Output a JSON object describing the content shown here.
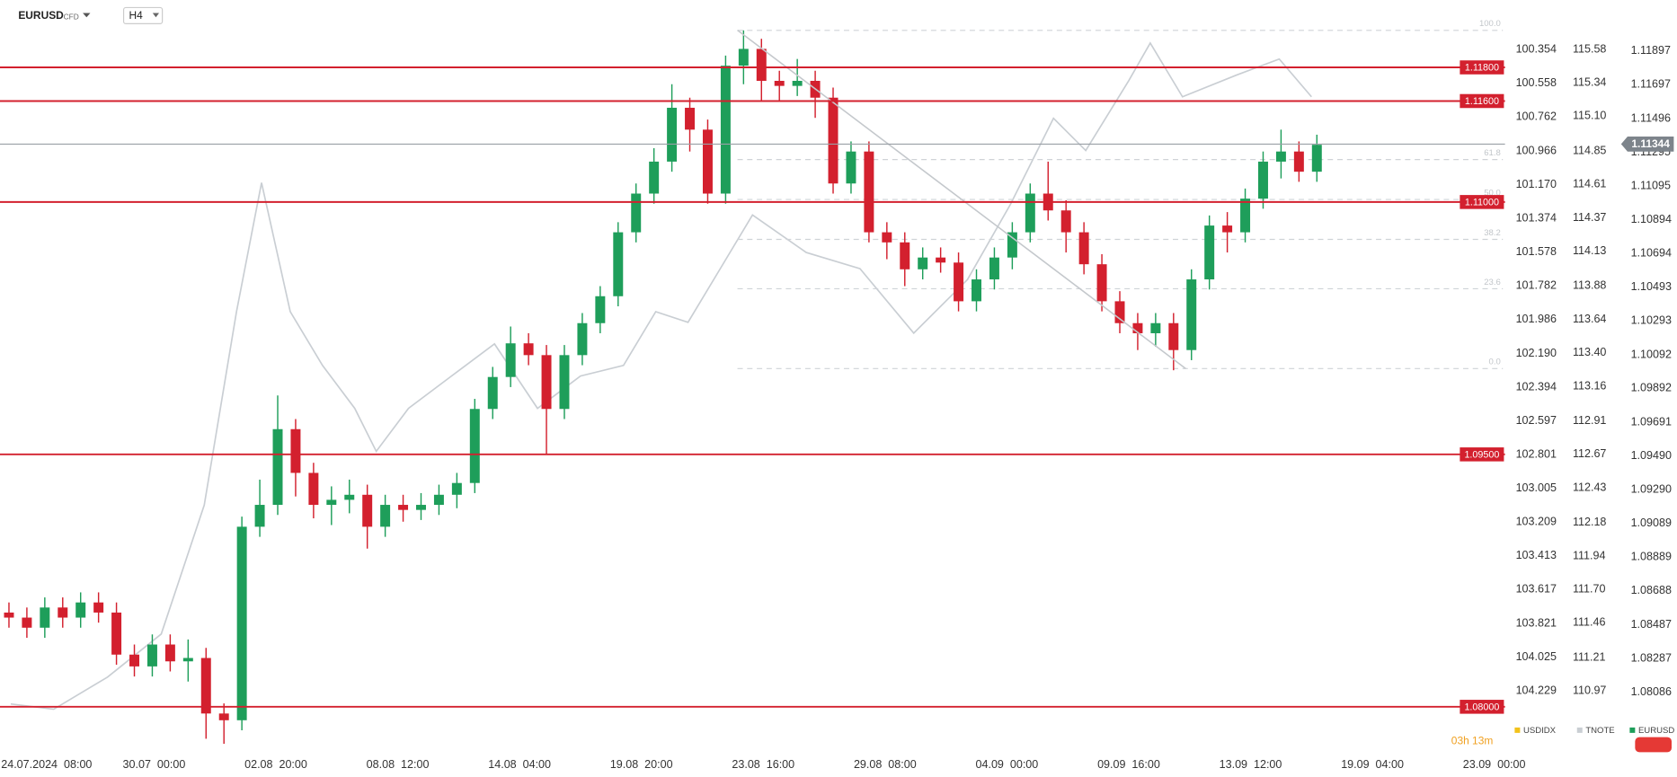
{
  "toolbar": {
    "symbol": "EURUSD",
    "instrument_type": "CFD",
    "timeframe": "H4",
    "countdown": "03h 13m"
  },
  "chart_data": {
    "type": "candlestick",
    "xlim": [
      0,
      420
    ],
    "xticks": [
      {
        "value": 13,
        "label": "24.07.2024  08:00"
      },
      {
        "value": 43,
        "label": "30.07  00:00"
      },
      {
        "value": 77,
        "label": "02.08  20:00"
      },
      {
        "value": 111,
        "label": "08.08  12:00"
      },
      {
        "value": 145,
        "label": "14.08  04:00"
      },
      {
        "value": 179,
        "label": "19.08  20:00"
      },
      {
        "value": 213,
        "label": "23.08  16:00"
      },
      {
        "value": 247,
        "label": "29.08  08:00"
      },
      {
        "value": 281,
        "label": "04.09  00:00"
      },
      {
        "value": 315,
        "label": "09.09  16:00"
      },
      {
        "value": 349,
        "label": "13.09  12:00"
      },
      {
        "value": 383,
        "label": "19.09  04:00"
      },
      {
        "value": 417,
        "label": "23.09  00:00"
      }
    ],
    "series": [
      {
        "name": "USDIDX",
        "color": "#f2c21b",
        "ylim": [
          104.599,
          100.055
        ],
        "yticks": [
          100.354,
          100.558,
          100.762,
          100.966,
          {
            "value": 101.17,
            "label": "101.170"
          },
          101.374,
          101.578,
          101.782,
          101.986,
          {
            "value": 102.19,
            "label": "102.190"
          },
          102.394,
          102.597,
          102.801,
          103.005,
          103.209,
          103.413,
          103.617,
          103.821,
          104.025,
          104.229
        ]
      },
      {
        "name": "TNOTE",
        "color": "#c9ced3",
        "ylim": [
          110.53,
          115.935
        ],
        "yticks": [
          115.58,
          115.34,
          {
            "value": 115.1,
            "label": "115.10"
          },
          114.85,
          114.61,
          114.37,
          114.13,
          113.88,
          113.64,
          {
            "value": 113.4,
            "label": "113.40"
          },
          113.16,
          112.91,
          112.67,
          112.43,
          112.18,
          111.94,
          {
            "value": 111.7,
            "label": "111.70"
          },
          111.46,
          111.21,
          110.97
        ],
        "x": [
          3,
          15,
          30,
          45,
          57,
          66,
          73,
          81,
          90,
          99,
          105,
          114,
          126,
          138,
          150,
          162,
          174,
          183,
          192,
          201,
          210,
          225,
          240,
          255,
          270,
          282,
          294,
          303,
          315,
          321,
          330,
          345,
          357,
          366
        ],
        "values": [
          110.877,
          110.839,
          111.07,
          111.379,
          112.306,
          113.696,
          114.622,
          113.696,
          113.31,
          113.001,
          112.692,
          113.001,
          113.233,
          113.464,
          113.001,
          113.233,
          113.31,
          113.696,
          113.619,
          114.005,
          114.391,
          114.121,
          114.005,
          113.541,
          113.927,
          114.468,
          115.086,
          114.854,
          115.356,
          115.626,
          115.24,
          115.395,
          115.511,
          115.24
        ]
      },
      {
        "name": "EURUSD",
        "color": "#1e9e5a",
        "down_color": "#d3202e",
        "ylim": [
          1.0773,
          1.122
        ],
        "yticks": [
          1.11897,
          1.11697,
          1.11496,
          1.11295,
          1.11095,
          1.10894,
          1.10694,
          1.10493,
          1.10293,
          1.10092,
          1.09892,
          1.09691,
          {
            "value": 1.0949,
            "label": "1.09490"
          },
          {
            "value": 1.0929,
            "label": "1.09290"
          },
          1.09089,
          1.08889,
          1.08688,
          1.08487,
          1.08287,
          1.08086
        ],
        "last_price": 1.11344,
        "x": [
          2.5,
          7.5,
          12.5,
          17.5,
          22.5,
          27.5,
          32.5,
          37.5,
          42.5,
          47.5,
          52.5,
          57.5,
          62.5,
          67.5,
          72.5,
          77.5,
          82.5,
          87.5,
          92.5,
          97.5,
          102.5,
          107.5,
          112.5,
          117.5,
          122.5,
          127.5,
          132.5,
          137.5,
          142.5,
          147.5,
          152.5,
          157.5,
          162.5,
          167.5,
          172.5,
          177.5,
          182.5,
          187.5,
          192.5,
          197.5,
          202.5,
          207.5,
          212.5,
          217.5,
          222.5,
          227.5,
          232.5,
          237.5,
          242.5,
          247.5,
          252.5,
          257.5,
          262.5,
          267.5,
          272.5,
          277.5,
          282.5,
          287.5,
          292.5,
          297.5,
          302.5,
          307.5,
          312.5,
          317.5,
          322.5,
          327.5,
          332.5,
          337.5,
          342.5,
          347.5,
          352.5,
          357.5,
          362.5,
          367.5
        ],
        "open": [
          1.0856,
          1.0853,
          1.0847,
          1.0859,
          1.0853,
          1.0862,
          1.0856,
          1.0831,
          1.0824,
          1.0837,
          1.0827,
          1.0829,
          1.0796,
          1.0792,
          1.0907,
          1.092,
          1.0965,
          1.0939,
          1.092,
          1.0923,
          1.0926,
          1.0907,
          1.092,
          1.0917,
          1.092,
          1.0926,
          1.0933,
          1.0977,
          1.0996,
          1.1016,
          1.1009,
          1.0977,
          1.1009,
          1.1028,
          1.1044,
          1.1082,
          1.1105,
          1.1124,
          1.1156,
          1.1143,
          1.1105,
          1.1181,
          1.1191,
          1.1172,
          1.1169,
          1.1172,
          1.1162,
          1.1111,
          1.113,
          1.1082,
          1.1076,
          1.106,
          1.1067,
          1.1064,
          1.1041,
          1.1054,
          1.1067,
          1.1082,
          1.1105,
          1.1095,
          1.1082,
          1.1063,
          1.1041,
          1.1028,
          1.1022,
          1.1028,
          1.1012,
          1.1054,
          1.1086,
          1.1082,
          1.1102,
          1.1124,
          1.113,
          1.1118
        ],
        "high": [
          1.0862,
          1.0859,
          1.0865,
          1.0865,
          1.0868,
          1.0868,
          1.0862,
          1.0837,
          1.0843,
          1.0843,
          1.084,
          1.0835,
          1.0802,
          1.0913,
          1.0935,
          1.0985,
          1.0971,
          1.0945,
          1.0931,
          1.0935,
          1.0932,
          1.0926,
          1.0926,
          1.0927,
          1.0932,
          1.0939,
          1.0983,
          1.1002,
          1.1026,
          1.1022,
          1.1015,
          1.1015,
          1.1034,
          1.105,
          1.1088,
          1.1111,
          1.1132,
          1.117,
          1.1162,
          1.1149,
          1.1187,
          1.1202,
          1.1197,
          1.1178,
          1.1185,
          1.1178,
          1.1168,
          1.1136,
          1.1136,
          1.1088,
          1.1082,
          1.1073,
          1.1073,
          1.107,
          1.106,
          1.1073,
          1.1088,
          1.1111,
          1.1124,
          1.1101,
          1.1088,
          1.1069,
          1.1047,
          1.1034,
          1.1034,
          1.1034,
          1.106,
          1.1092,
          1.1094,
          1.1108,
          1.113,
          1.1143,
          1.1136,
          1.114
        ],
        "low": [
          1.0847,
          1.0841,
          1.0841,
          1.0847,
          1.0847,
          1.085,
          1.0825,
          1.0818,
          1.0818,
          1.0821,
          1.0815,
          1.0781,
          1.0778,
          1.0786,
          1.0901,
          1.0914,
          1.0925,
          1.0912,
          1.0908,
          1.0915,
          1.0894,
          1.0901,
          1.091,
          1.0911,
          1.0914,
          1.0918,
          1.0927,
          1.0971,
          1.099,
          1.1003,
          1.095,
          1.0971,
          1.1003,
          1.1022,
          1.1038,
          1.1076,
          1.1099,
          1.1118,
          1.113,
          1.1099,
          1.1099,
          1.117,
          1.116,
          1.116,
          1.1163,
          1.115,
          1.1105,
          1.1105,
          1.1076,
          1.1066,
          1.105,
          1.1054,
          1.1058,
          1.1035,
          1.1035,
          1.1048,
          1.106,
          1.1076,
          1.1089,
          1.107,
          1.1057,
          1.1035,
          1.1022,
          1.1012,
          1.1014,
          1.1,
          1.1006,
          1.1048,
          1.107,
          1.1076,
          1.1096,
          1.1114,
          1.1112,
          1.1112
        ],
        "close": [
          1.0853,
          1.0847,
          1.0859,
          1.0853,
          1.0862,
          1.0856,
          1.0831,
          1.0824,
          1.0837,
          1.0827,
          1.0829,
          1.0796,
          1.0792,
          1.0907,
          1.092,
          1.0965,
          1.0939,
          1.092,
          1.0923,
          1.0926,
          1.0907,
          1.092,
          1.0917,
          1.092,
          1.0926,
          1.0933,
          1.0977,
          1.0996,
          1.1016,
          1.1009,
          1.0977,
          1.1009,
          1.1028,
          1.1044,
          1.1082,
          1.1105,
          1.1124,
          1.1156,
          1.1143,
          1.1105,
          1.1181,
          1.1191,
          1.1172,
          1.1169,
          1.1172,
          1.1162,
          1.1111,
          1.113,
          1.1082,
          1.1076,
          1.106,
          1.1067,
          1.1064,
          1.1041,
          1.1054,
          1.1067,
          1.1082,
          1.1105,
          1.1095,
          1.1082,
          1.1063,
          1.1041,
          1.1028,
          1.1022,
          1.1028,
          1.1012,
          1.1054,
          1.1086,
          1.1082,
          1.1102,
          1.1124,
          1.113,
          1.1118,
          1.1134
        ]
      }
    ],
    "levels": [
      {
        "value": 1.118,
        "label": "1.11800"
      },
      {
        "value": 1.116,
        "label": "1.11600"
      },
      {
        "value": 1.11,
        "label": "1.11000"
      },
      {
        "value": 1.095,
        "label": "1.09500"
      },
      {
        "value": 1.08,
        "label": "1.08000"
      }
    ],
    "level_color": "#d3202e",
    "fibonacci": {
      "high": 1.1202,
      "low": 1.1001,
      "levels": [
        {
          "value": 100,
          "label": "100.0"
        },
        {
          "value": 61.8,
          "label": "61.8"
        },
        {
          "value": 50,
          "label": "50.0"
        },
        {
          "value": 38.2,
          "label": "38.2"
        },
        {
          "value": 23.6,
          "label": "23.6"
        },
        {
          "value": 0,
          "label": "0.0"
        }
      ]
    }
  }
}
